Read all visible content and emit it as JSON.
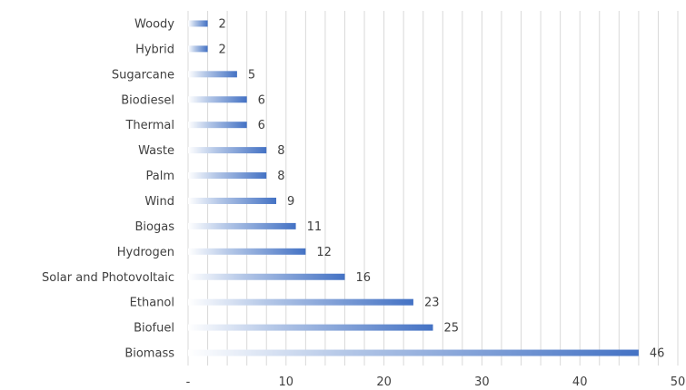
{
  "chart_data": {
    "type": "bar",
    "orientation": "horizontal",
    "categories": [
      "Woody",
      "Hybrid",
      "Sugarcane",
      "Biodiesel",
      "Thermal",
      "Waste",
      "Palm",
      "Wind",
      "Biogas",
      "Hydrogen",
      "Solar and Photovoltaic",
      "Ethanol",
      "Biofuel",
      "Biomass"
    ],
    "values": [
      2,
      2,
      5,
      6,
      6,
      8,
      8,
      9,
      11,
      12,
      16,
      23,
      25,
      46
    ],
    "x_ticks": [
      "-",
      "10",
      "20",
      "30",
      "40",
      "50"
    ],
    "xlim": [
      0,
      50
    ],
    "grid": true,
    "bar_color": "#4472c4",
    "title": "",
    "xlabel": "",
    "ylabel": ""
  }
}
